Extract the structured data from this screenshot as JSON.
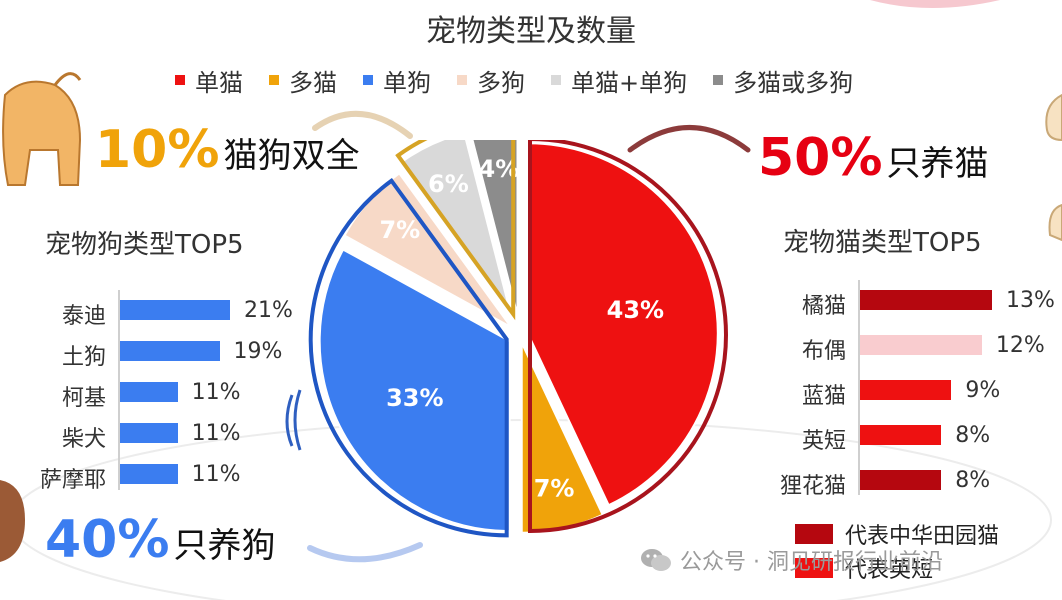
{
  "chart_data": [
    {
      "type": "pie",
      "title": "宠物类型及数量",
      "categories": [
        "单猫",
        "多猫",
        "单狗",
        "多狗",
        "单猫+单狗",
        "多猫或多狗"
      ],
      "values": [
        43,
        7,
        33,
        7,
        6,
        4
      ],
      "labels": [
        "43%",
        "7%",
        "33%",
        "7%",
        "6%",
        "4%"
      ],
      "colors": [
        "#ee1111",
        "#f0a30a",
        "#3b7df0",
        "#f7d9c7",
        "#d9d9d9",
        "#8c8c8c"
      ],
      "legend_position": "top",
      "annotations": [
        {
          "pct": "10%",
          "text": "猫狗双全",
          "color": "#f0a30a"
        },
        {
          "pct": "50%",
          "text": "只养猫",
          "color": "#e60012"
        },
        {
          "pct": "40%",
          "text": "只养狗",
          "color": "#3b7df0"
        }
      ]
    },
    {
      "type": "bar",
      "orientation": "horizontal",
      "title": "宠物狗类型TOP5",
      "categories": [
        "泰迪",
        "土狗",
        "柯基",
        "柴犬",
        "萨摩耶"
      ],
      "values": [
        21,
        19,
        11,
        11,
        11
      ],
      "labels": [
        "21%",
        "19%",
        "11%",
        "11%",
        "11%"
      ],
      "color": "#3b7df0"
    },
    {
      "type": "bar",
      "orientation": "horizontal",
      "title": "宠物猫类型TOP5",
      "categories": [
        "橘猫",
        "布偶",
        "蓝猫",
        "英短",
        "狸花猫"
      ],
      "values": [
        13,
        12,
        9,
        8,
        8
      ],
      "labels": [
        "13%",
        "12%",
        "9%",
        "8%",
        "8%"
      ],
      "colors": [
        "#b5070f",
        "#f9cccf",
        "#ee1111",
        "#ee1111",
        "#b5070f"
      ],
      "key": [
        {
          "label": "代表中华田园猫",
          "color": "#b5070f"
        },
        {
          "label": "代表英短",
          "color": "#ee1111"
        }
      ]
    }
  ],
  "watermark": {
    "text": "公众号 · 洞见研报行业前沿"
  }
}
